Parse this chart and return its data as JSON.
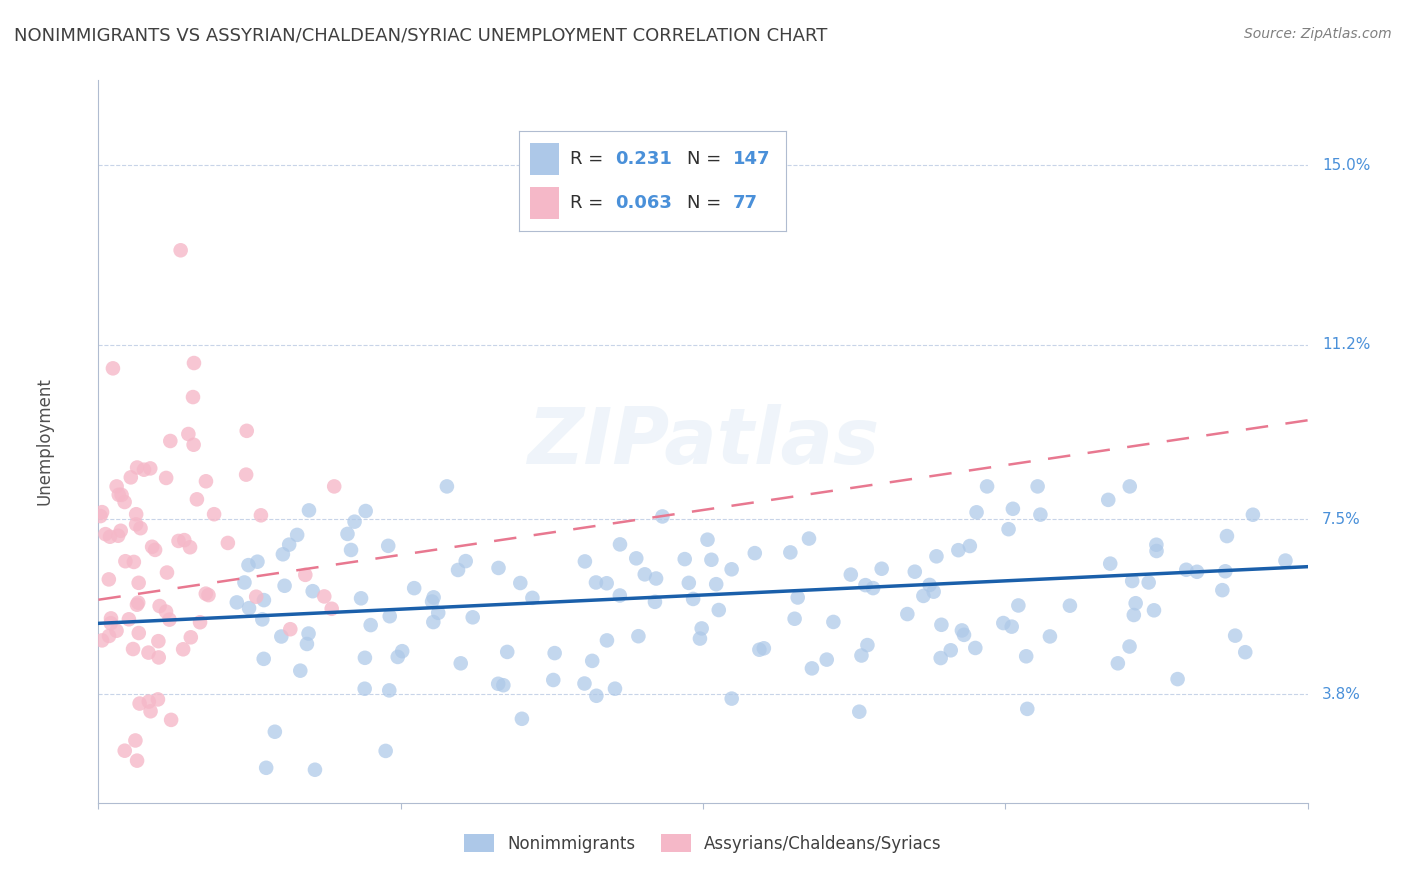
{
  "title": "NONIMMIGRANTS VS ASSYRIAN/CHALDEAN/SYRIAC UNEMPLOYMENT CORRELATION CHART",
  "source": "Source: ZipAtlas.com",
  "ylabel": "Unemployment",
  "ytick_labels": [
    "3.8%",
    "7.5%",
    "11.2%",
    "15.0%"
  ],
  "ytick_values": [
    0.038,
    0.075,
    0.112,
    0.15
  ],
  "xlim": [
    0.0,
    1.0
  ],
  "ylim": [
    0.015,
    0.168
  ],
  "blue_R": "0.231",
  "blue_N": "147",
  "pink_R": "0.063",
  "pink_N": "77",
  "blue_color": "#adc8e8",
  "pink_color": "#f5b8c8",
  "blue_line_color": "#1a5faa",
  "pink_line_color": "#e87890",
  "watermark": "ZIPatlas",
  "background_color": "#ffffff",
  "legend_label_blue": "Nonimmigrants",
  "legend_label_pink": "Assyrians/Chaldeans/Syriacs",
  "title_color": "#404040",
  "axis_label_color": "#4a90d9",
  "legend_text_dark": "#303030",
  "legend_value_color": "#4a90d9",
  "legend_n_color": "#4a90d9"
}
